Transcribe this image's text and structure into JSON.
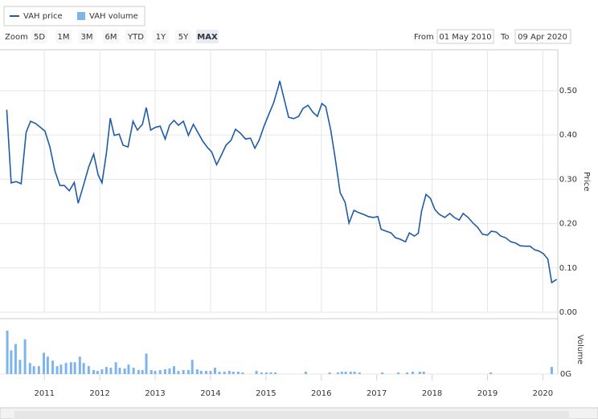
{
  "range_selector": {
    "label": "Zoom",
    "buttons": [
      "5D",
      "1M",
      "3M",
      "6M",
      "YTD",
      "1Y",
      "5Y",
      "MAX"
    ],
    "selected": 7,
    "from_label": "From",
    "from": "01 May 2010",
    "to_label": "To",
    "to": "09 Apr 2020"
  },
  "chart_data": [
    {
      "type": "line",
      "y_label": "Price",
      "grid": true,
      "xlim": [
        2010.3,
        2020.27
      ],
      "xticks": [
        2011,
        2012,
        2013,
        2014,
        2015,
        2016,
        2017,
        2018,
        2019,
        2020
      ],
      "ylim": [
        0,
        0.59
      ],
      "yticks": [
        {
          "value": 0,
          "label": "0.00"
        },
        {
          "value": 0.1,
          "label": "0.10"
        },
        {
          "value": 0.2,
          "label": "0.20"
        },
        {
          "value": 0.3,
          "label": "0.30"
        },
        {
          "value": 0.4,
          "label": "0.40"
        },
        {
          "value": 0.5,
          "label": "0.50"
        }
      ],
      "series": [
        {
          "name": "VAH price",
          "color": "#1f5ba6",
          "x": [
            2010.32,
            2010.4,
            2010.49,
            2010.58,
            2010.67,
            2010.75,
            2010.84,
            2010.93,
            2011.01,
            2011.1,
            2011.19,
            2011.28,
            2011.36,
            2011.45,
            2011.54,
            2011.61,
            2011.7,
            2011.8,
            2011.89,
            2011.97,
            2012.04,
            2012.12,
            2012.19,
            2012.26,
            2012.35,
            2012.42,
            2012.51,
            2012.6,
            2012.68,
            2012.77,
            2012.84,
            2012.92,
            2013.0,
            2013.09,
            2013.18,
            2013.26,
            2013.34,
            2013.42,
            2013.51,
            2013.6,
            2013.69,
            2013.77,
            2013.86,
            2013.95,
            2014.02,
            2014.11,
            2014.19,
            2014.28,
            2014.37,
            2014.45,
            2014.54,
            2014.63,
            2014.72,
            2014.8,
            2014.88,
            2014.96,
            2015.05,
            2015.14,
            2015.22,
            2015.25,
            2015.31,
            2015.41,
            2015.5,
            2015.59,
            2015.67,
            2015.76,
            2015.85,
            2015.93,
            2016.01,
            2016.08,
            2016.17,
            2016.25,
            2016.34,
            2016.43,
            2016.5,
            2016.59,
            2016.67,
            2016.76,
            2016.85,
            2016.94,
            2017.02,
            2017.08,
            2017.17,
            2017.26,
            2017.34,
            2017.42,
            2017.52,
            2017.59,
            2017.68,
            2017.75,
            2017.81,
            2017.89,
            2017.97,
            2018.05,
            2018.13,
            2018.23,
            2018.32,
            2018.4,
            2018.49,
            2018.56,
            2018.65,
            2018.74,
            2018.82,
            2018.91,
            2019.0,
            2019.07,
            2019.16,
            2019.24,
            2019.33,
            2019.42,
            2019.51,
            2019.59,
            2019.68,
            2019.77,
            2019.85,
            2019.93,
            2020.01,
            2020.09,
            2020.16,
            2020.25
          ],
          "values": [
            0.457,
            0.292,
            0.295,
            0.29,
            0.406,
            0.431,
            0.426,
            0.417,
            0.409,
            0.373,
            0.319,
            0.286,
            0.286,
            0.274,
            0.293,
            0.246,
            0.284,
            0.328,
            0.357,
            0.31,
            0.292,
            0.359,
            0.438,
            0.399,
            0.402,
            0.377,
            0.373,
            0.431,
            0.411,
            0.424,
            0.462,
            0.411,
            0.417,
            0.42,
            0.391,
            0.422,
            0.433,
            0.422,
            0.431,
            0.399,
            0.424,
            0.406,
            0.386,
            0.371,
            0.362,
            0.333,
            0.353,
            0.377,
            0.388,
            0.413,
            0.404,
            0.391,
            0.393,
            0.37,
            0.389,
            0.418,
            0.446,
            0.473,
            0.507,
            0.522,
            0.491,
            0.44,
            0.437,
            0.442,
            0.46,
            0.467,
            0.451,
            0.442,
            0.471,
            0.464,
            0.411,
            0.348,
            0.27,
            0.248,
            0.201,
            0.23,
            0.225,
            0.221,
            0.216,
            0.214,
            0.216,
            0.187,
            0.183,
            0.179,
            0.168,
            0.165,
            0.159,
            0.179,
            0.172,
            0.178,
            0.228,
            0.266,
            0.257,
            0.232,
            0.221,
            0.214,
            0.223,
            0.214,
            0.208,
            0.223,
            0.214,
            0.201,
            0.192,
            0.176,
            0.174,
            0.183,
            0.181,
            0.172,
            0.168,
            0.159,
            0.156,
            0.15,
            0.149,
            0.149,
            0.141,
            0.138,
            0.132,
            0.12,
            0.067,
            0.074
          ]
        }
      ]
    },
    {
      "type": "bar",
      "y_label": "Volume",
      "xlim": [
        2010.3,
        2020.27
      ],
      "xticks": [
        2011,
        2012,
        2013,
        2014,
        2015,
        2016,
        2017,
        2018,
        2019,
        2020
      ],
      "ylim": [
        0,
        62
      ],
      "yticks": [
        {
          "value": 0,
          "label": "0G"
        }
      ],
      "series": [
        {
          "name": "VAH volume",
          "color": "#7cb5ec",
          "x": [
            2010.33,
            2010.4,
            2010.48,
            2010.56,
            2010.65,
            2010.74,
            2010.81,
            2010.9,
            2010.99,
            2011.06,
            2011.15,
            2011.23,
            2011.3,
            2011.39,
            2011.48,
            2011.55,
            2011.64,
            2011.71,
            2011.8,
            2011.89,
            2011.96,
            2012.04,
            2012.12,
            2012.2,
            2012.29,
            2012.36,
            2012.45,
            2012.52,
            2012.61,
            2012.7,
            2012.77,
            2012.84,
            2012.93,
            2013.0,
            2013.09,
            2013.18,
            2013.26,
            2013.34,
            2013.42,
            2013.51,
            2013.6,
            2013.67,
            2013.76,
            2013.83,
            2013.92,
            2014.0,
            2014.08,
            2014.16,
            2014.25,
            2014.34,
            2014.41,
            2014.5,
            2014.58,
            2014.83,
            2014.92,
            2015.01,
            2015.09,
            2015.17,
            2015.72,
            2016.15,
            2016.3,
            2016.37,
            2016.44,
            2016.53,
            2016.6,
            2016.69,
            2017.1,
            2017.39,
            2017.55,
            2017.65,
            2017.78,
            2017.85,
            2019.06,
            2020.16
          ],
          "values": [
            55,
            30,
            38,
            18,
            44,
            14,
            10,
            10,
            27,
            22,
            17,
            10,
            12,
            14,
            15,
            15,
            22,
            14,
            10,
            5,
            4,
            6,
            9,
            8,
            15,
            8,
            7,
            12,
            8,
            5,
            5,
            26,
            5,
            4,
            5,
            6,
            7,
            10,
            4,
            5,
            5,
            18,
            6,
            4,
            4,
            4,
            8,
            3,
            3,
            4,
            3,
            3,
            2,
            4,
            2,
            2,
            2,
            2,
            3,
            2,
            2,
            3,
            3,
            3,
            3,
            2,
            2,
            2,
            2,
            3,
            3,
            3,
            2,
            9
          ]
        }
      ]
    }
  ]
}
